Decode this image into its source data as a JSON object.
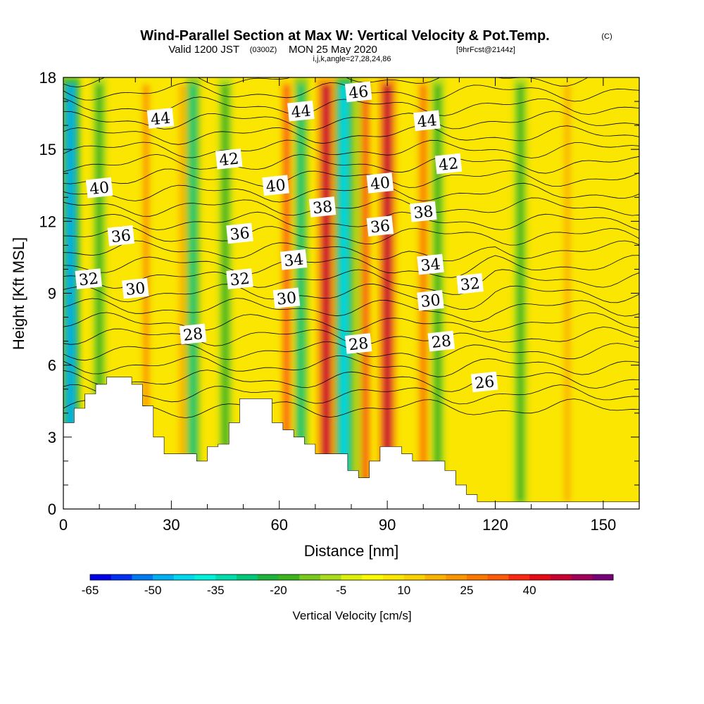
{
  "title": "Wind-Parallel Section at Max W: Vertical Velocity & Pot.Temp.",
  "copyright": "(C)",
  "subtitle_a": "Valid 1200 JST",
  "subtitle_b": "(0300Z)",
  "subtitle_c": "MON 25 May 2020",
  "subtitle_d": "[9hrFcst@2144z]",
  "subtitle_small": "i,j,k,angle=27,28,24,86",
  "chart_data": {
    "type": "heatmap",
    "xlabel": "Distance [nm]",
    "ylabel": "Height [Kft MSL]",
    "xlim": [
      0,
      160
    ],
    "ylim": [
      0,
      18
    ],
    "x_ticks": [
      0,
      30,
      60,
      90,
      120,
      150
    ],
    "y_ticks": [
      0,
      3,
      6,
      9,
      12,
      15,
      18
    ],
    "colorbar": {
      "title": "Vertical Velocity [cm/s]",
      "tick_labels": [
        "-65",
        "-50",
        "-35",
        "-20",
        "-5",
        "10",
        "25",
        "40"
      ],
      "min": -65,
      "max": 55,
      "step": 5,
      "colors": [
        "#0000e6",
        "#0030f0",
        "#0078f0",
        "#00aff0",
        "#00d8f0",
        "#00f0dc",
        "#00dcaa",
        "#00c878",
        "#1eb43c",
        "#3cb41e",
        "#78c81e",
        "#aadc1e",
        "#dcf00a",
        "#fafa00",
        "#fae600",
        "#fad200",
        "#fab400",
        "#fa9600",
        "#fa7800",
        "#fa5a0a",
        "#fa2810",
        "#e60a14",
        "#c80032",
        "#a0005a",
        "#780078"
      ]
    },
    "velocity_columns": [
      {
        "x": 2,
        "value": -48
      },
      {
        "x": 10,
        "value": -20
      },
      {
        "x": 23,
        "value": 22
      },
      {
        "x": 33,
        "value": 18
      },
      {
        "x": 36,
        "value": -28
      },
      {
        "x": 45,
        "value": -20
      },
      {
        "x": 62,
        "value": 30
      },
      {
        "x": 66,
        "value": -30
      },
      {
        "x": 73,
        "value": 45
      },
      {
        "x": 78,
        "value": -45
      },
      {
        "x": 83,
        "value": -25
      },
      {
        "x": 84,
        "value": 32
      },
      {
        "x": 90,
        "value": 45
      },
      {
        "x": 100,
        "value": 28
      },
      {
        "x": 104,
        "value": -20
      },
      {
        "x": 127,
        "value": -18
      },
      {
        "x": 140,
        "value": 15
      }
    ],
    "isentropes": {
      "label_text": [
        "26",
        "28",
        "28",
        "28",
        "30",
        "30",
        "30",
        "32",
        "32",
        "32",
        "34",
        "34",
        "36",
        "36",
        "36",
        "38",
        "38",
        "40",
        "40",
        "40",
        "42",
        "42",
        "44",
        "44",
        "44",
        "46"
      ],
      "label_positions": [
        {
          "x": 117,
          "y": 5.3
        },
        {
          "x": 36,
          "y": 7.3
        },
        {
          "x": 82,
          "y": 6.9
        },
        {
          "x": 105,
          "y": 7.0
        },
        {
          "x": 20,
          "y": 9.2
        },
        {
          "x": 62,
          "y": 8.8
        },
        {
          "x": 102,
          "y": 8.7
        },
        {
          "x": 7,
          "y": 9.6
        },
        {
          "x": 49,
          "y": 9.6
        },
        {
          "x": 113,
          "y": 9.4
        },
        {
          "x": 64,
          "y": 10.4
        },
        {
          "x": 102,
          "y": 10.2
        },
        {
          "x": 16,
          "y": 11.4
        },
        {
          "x": 49,
          "y": 11.5
        },
        {
          "x": 88,
          "y": 11.8
        },
        {
          "x": 72,
          "y": 12.6
        },
        {
          "x": 100,
          "y": 12.4
        },
        {
          "x": 10,
          "y": 13.4
        },
        {
          "x": 59,
          "y": 13.5
        },
        {
          "x": 88,
          "y": 13.6
        },
        {
          "x": 46,
          "y": 14.6
        },
        {
          "x": 107,
          "y": 14.4
        },
        {
          "x": 27,
          "y": 16.3
        },
        {
          "x": 66,
          "y": 16.6
        },
        {
          "x": 101,
          "y": 16.2
        },
        {
          "x": 82,
          "y": 17.4
        }
      ]
    },
    "terrain": [
      [
        0,
        3.6
      ],
      [
        3,
        3.6
      ],
      [
        3,
        4.2
      ],
      [
        6,
        4.2
      ],
      [
        6,
        4.8
      ],
      [
        9,
        4.8
      ],
      [
        9,
        5.2
      ],
      [
        12,
        5.2
      ],
      [
        12,
        5.5
      ],
      [
        16,
        5.5
      ],
      [
        19,
        5.5
      ],
      [
        19,
        5.2
      ],
      [
        22,
        5.2
      ],
      [
        22,
        4.3
      ],
      [
        25,
        4.3
      ],
      [
        25,
        3.0
      ],
      [
        28,
        3.0
      ],
      [
        28,
        2.3
      ],
      [
        34,
        2.3
      ],
      [
        37,
        2.3
      ],
      [
        37,
        2.0
      ],
      [
        40,
        2.0
      ],
      [
        40,
        2.6
      ],
      [
        43,
        2.6
      ],
      [
        43,
        2.7
      ],
      [
        46,
        2.7
      ],
      [
        46,
        3.6
      ],
      [
        49,
        3.6
      ],
      [
        49,
        4.6
      ],
      [
        52,
        4.6
      ],
      [
        58,
        4.6
      ],
      [
        58,
        3.6
      ],
      [
        61,
        3.6
      ],
      [
        61,
        3.3
      ],
      [
        64,
        3.3
      ],
      [
        64,
        3.0
      ],
      [
        67,
        3.0
      ],
      [
        67,
        2.7
      ],
      [
        70,
        2.7
      ],
      [
        70,
        2.3
      ],
      [
        77,
        2.3
      ],
      [
        79,
        2.3
      ],
      [
        79,
        1.6
      ],
      [
        82,
        1.6
      ],
      [
        82,
        1.3
      ],
      [
        85,
        1.3
      ],
      [
        85,
        2.0
      ],
      [
        88,
        2.0
      ],
      [
        88,
        2.6
      ],
      [
        91,
        2.6
      ],
      [
        94,
        2.6
      ],
      [
        94,
        2.3
      ],
      [
        97,
        2.3
      ],
      [
        97,
        2.0
      ],
      [
        103,
        2.0
      ],
      [
        106,
        2.0
      ],
      [
        106,
        1.6
      ],
      [
        109,
        1.6
      ],
      [
        109,
        1.0
      ],
      [
        112,
        1.0
      ],
      [
        112,
        0.6
      ],
      [
        115,
        0.6
      ],
      [
        115,
        0.3
      ],
      [
        160,
        0.3
      ],
      [
        160,
        0
      ]
    ]
  }
}
